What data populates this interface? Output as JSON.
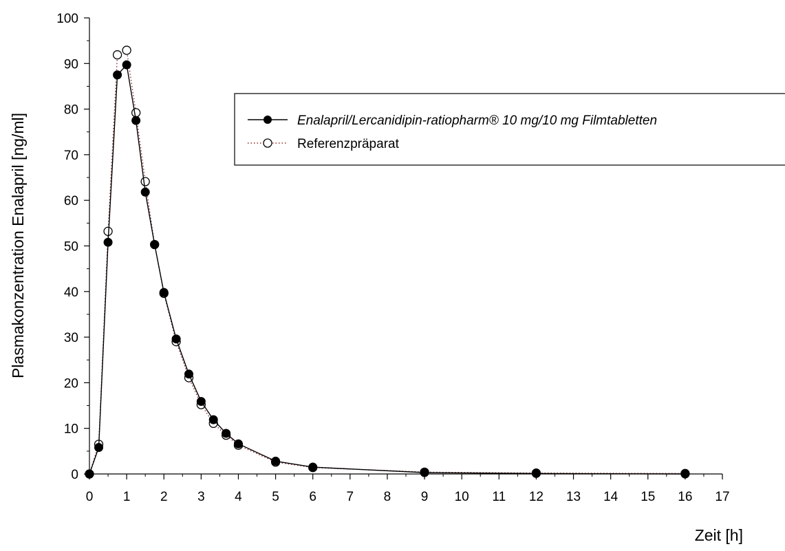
{
  "chart_data": {
    "type": "line",
    "title": "",
    "xlabel": "Zeit [h]",
    "ylabel": "Plasmakonzentration Enalapril [ng/ml]",
    "xlim": [
      0,
      17
    ],
    "ylim": [
      0,
      100
    ],
    "x_ticks": [
      "0",
      "1",
      "2",
      "3",
      "4",
      "5",
      "6",
      "7",
      "8",
      "9",
      "10",
      "11",
      "12",
      "13",
      "14",
      "15",
      "16",
      "17"
    ],
    "y_ticks": [
      "0",
      "10",
      "20",
      "30",
      "40",
      "50",
      "60",
      "70",
      "80",
      "90",
      "100"
    ],
    "grid": false,
    "legend_position": "top-right",
    "series": [
      {
        "name": "Enalapril/Lercanidipin-ratiopharm® 10 mg/10 mg Filmtabletten",
        "marker": "filled-circle",
        "line": "solid",
        "color": "#000000",
        "x": [
          0,
          0.25,
          0.5,
          0.75,
          1,
          1.25,
          1.5,
          1.75,
          2,
          2.33,
          2.67,
          3,
          3.33,
          3.67,
          4,
          5,
          6,
          9,
          12,
          16
        ],
        "y": [
          0,
          5.8,
          50.8,
          87.5,
          89.7,
          77.5,
          61.8,
          50.3,
          39.8,
          29.6,
          21.9,
          15.9,
          11.9,
          8.9,
          6.6,
          2.8,
          1.5,
          0.3,
          0.1,
          0.0
        ]
      },
      {
        "name": "Referenzpräparat",
        "marker": "open-circle",
        "line": "dotted",
        "color": "#8b2a2a",
        "x": [
          0,
          0.25,
          0.5,
          0.75,
          1,
          1.25,
          1.5,
          1.75,
          2,
          2.33,
          2.67,
          3,
          3.33,
          3.67,
          4,
          5,
          6,
          9,
          12,
          16
        ],
        "y": [
          0,
          6.5,
          53.2,
          91.9,
          92.9,
          79.2,
          64.1,
          50.3,
          39.6,
          29.0,
          21.1,
          15.2,
          11.1,
          8.5,
          6.3,
          2.6,
          1.4,
          0.4,
          0.2,
          0.1
        ]
      }
    ]
  }
}
